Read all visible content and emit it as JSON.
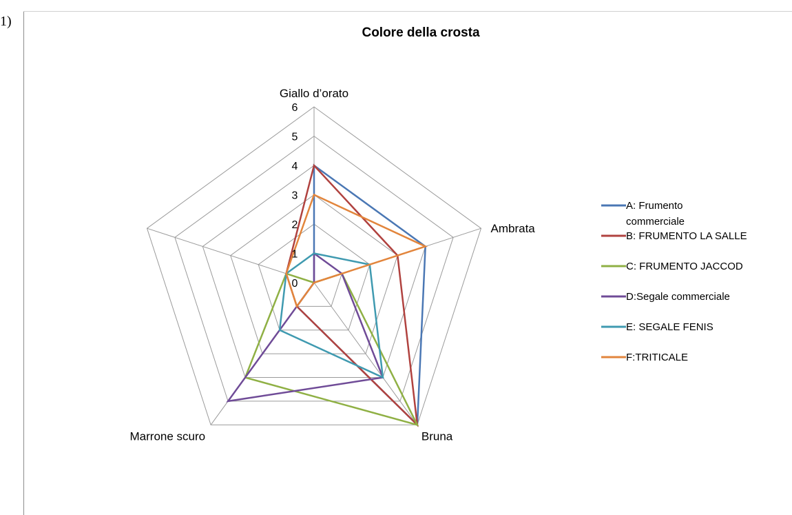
{
  "list_marker": "1)",
  "chart_data": {
    "type": "radar",
    "title": "Colore della crosta",
    "axes": [
      "Giallo d’orato",
      "Ambrata",
      "Bruna",
      "Marrone scuro",
      ""
    ],
    "ticks": [
      "0",
      "1",
      "2",
      "3",
      "4",
      "5",
      "6"
    ],
    "rmax": 6,
    "grid": true,
    "legend_position": "right",
    "series": [
      {
        "name": "A: Frumento commerciale",
        "label_lines": [
          "A: Frumento",
          "commerciale"
        ],
        "color": "#4a77b4",
        "values": [
          4,
          4,
          6,
          1,
          0
        ]
      },
      {
        "name": "B: FRUMENTO LA SALLE",
        "label_lines": [
          "B: FRUMENTO LA SALLE"
        ],
        "color": "#b0423f",
        "values": [
          4,
          3,
          6,
          1,
          1
        ]
      },
      {
        "name": "C: FRUMENTO JACCOD",
        "label_lines": [
          "C: FRUMENTO JACCOD"
        ],
        "color": "#8fb044",
        "values": [
          0,
          1,
          6,
          4,
          1
        ]
      },
      {
        "name": "D:Segale commerciale",
        "label_lines": [
          "D:Segale commerciale"
        ],
        "color": "#6f4b97",
        "values": [
          1,
          1,
          4,
          5,
          0
        ]
      },
      {
        "name": "E: SEGALE FENIS",
        "label_lines": [
          "E: SEGALE FENIS"
        ],
        "color": "#3f9ab0",
        "values": [
          1,
          2,
          4,
          2,
          1
        ]
      },
      {
        "name": "F:TRITICALE",
        "label_lines": [
          "F:TRITICALE"
        ],
        "color": "#e2853c",
        "values": [
          3,
          4,
          0,
          1,
          1
        ]
      }
    ]
  }
}
